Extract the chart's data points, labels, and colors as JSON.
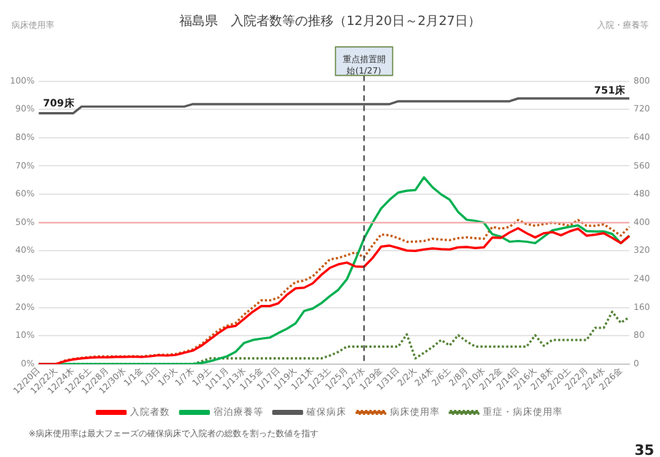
{
  "chart_data": {
    "type": "line",
    "title": "福島県　入院者数等の推移（12月20日～2月27日）",
    "categories": [
      "12/20日",
      null,
      "12/22火",
      null,
      "12/24木",
      null,
      "12/26土",
      null,
      "12/28月",
      null,
      "12/30水",
      null,
      "1/1金",
      null,
      "1/3日",
      null,
      "1/5火",
      null,
      "1/7木",
      null,
      "1/9土",
      null,
      "1/11月",
      null,
      "1/13水",
      null,
      "1/15金",
      null,
      "1/17日",
      null,
      "1/19火",
      null,
      "1/21木",
      null,
      "1/23土",
      null,
      "1/25月",
      null,
      "1/27水",
      null,
      "1/29金",
      null,
      "1/31日",
      null,
      "2/2火",
      null,
      "2/4木",
      null,
      "2/6土",
      null,
      "2/8月",
      null,
      "2/10水",
      null,
      "2/12金",
      null,
      "2/14日",
      null,
      "2/16火",
      null,
      "2/18木",
      null,
      "2/20土",
      null,
      "2/22月",
      null,
      "2/24水",
      null,
      "2/26金",
      null
    ],
    "series": [
      {
        "name": "入院者数",
        "color": "#ff0000",
        "axis": "y2",
        "line_style": "solid",
        "values": [
          0,
          0,
          0,
          8,
          13,
          16,
          18,
          19,
          19,
          20,
          20,
          21,
          20,
          22,
          25,
          24,
          26,
          32,
          38,
          52,
          70,
          88,
          104,
          108,
          128,
          148,
          164,
          164,
          172,
          196,
          214,
          216,
          228,
          252,
          272,
          282,
          287,
          276,
          275,
          300,
          332,
          335,
          328,
          321,
          320,
          324,
          327,
          325,
          324,
          330,
          331,
          328,
          330,
          358,
          357,
          372,
          384,
          370,
          358,
          370,
          373,
          364,
          375,
          383,
          363,
          366,
          370,
          357,
          342,
          362
        ]
      },
      {
        "name": "宿泊療養等",
        "color": "#00b050",
        "axis": "y2",
        "line_style": "solid",
        "values": [
          0,
          0,
          0,
          0,
          0,
          0,
          0,
          0,
          0,
          0,
          0,
          0,
          0,
          0,
          0,
          0,
          0,
          0,
          0,
          3,
          8,
          15,
          22,
          35,
          60,
          68,
          72,
          75,
          88,
          100,
          115,
          150,
          157,
          172,
          192,
          210,
          240,
          295,
          355,
          400,
          440,
          465,
          485,
          490,
          492,
          528,
          500,
          480,
          465,
          430,
          408,
          405,
          400,
          367,
          360,
          346,
          348,
          346,
          342,
          360,
          378,
          383,
          388,
          392,
          376,
          375,
          375,
          368,
          342,
          363
        ]
      },
      {
        "name": "確保病床",
        "color": "#595959",
        "axis": "y2",
        "line_style": "solid",
        "values": [
          709,
          709,
          709,
          709,
          709,
          728,
          728,
          728,
          728,
          728,
          728,
          728,
          728,
          728,
          728,
          728,
          728,
          728,
          735,
          735,
          735,
          735,
          735,
          735,
          735,
          735,
          735,
          735,
          735,
          735,
          735,
          735,
          735,
          735,
          735,
          735,
          735,
          735,
          735,
          735,
          735,
          735,
          743,
          743,
          743,
          743,
          743,
          743,
          743,
          743,
          743,
          743,
          743,
          743,
          743,
          743,
          751,
          751,
          751,
          751,
          751,
          751,
          751,
          751,
          751,
          751,
          751,
          751,
          751,
          751
        ]
      },
      {
        "name": "病床使用率",
        "color": "#c55a11",
        "line_style": "dotted",
        "values": [
          0,
          0,
          0,
          1.2,
          1.8,
          2.2,
          2.5,
          2.7,
          2.7,
          2.7,
          2.7,
          2.8,
          2.7,
          3,
          3.3,
          3.3,
          3.6,
          4.3,
          5.2,
          7,
          9.5,
          12,
          13.5,
          14.5,
          17.5,
          20,
          22.5,
          22.5,
          23.5,
          26.5,
          29,
          29.5,
          31,
          34,
          37,
          37.5,
          38.5,
          39.5,
          37.7,
          42,
          45.8,
          45.5,
          44.5,
          43.2,
          43.3,
          43.5,
          44.3,
          44,
          43.8,
          44.5,
          44.8,
          44.5,
          44.3,
          48.5,
          47.8,
          48.5,
          50.9,
          49.5,
          48.9,
          49.5,
          50,
          49.5,
          48.9,
          50.9,
          48.9,
          48.9,
          49.4,
          47.5,
          45.4,
          48.5
        ]
      },
      {
        "name": "重症・病床使用率",
        "color": "#548235",
        "line_style": "dotted",
        "values": [
          0,
          0,
          0,
          0,
          0,
          0,
          0,
          0,
          0,
          0,
          0,
          0,
          0,
          0,
          0,
          0,
          0,
          0,
          0,
          1,
          2,
          2,
          2,
          2,
          2,
          2,
          2,
          2,
          2,
          2,
          2,
          2,
          2,
          2,
          3,
          4.3,
          6.2,
          6.2,
          6.2,
          6.2,
          6.2,
          6.2,
          6.2,
          10.5,
          2,
          4,
          6,
          8.5,
          6.6,
          10.2,
          8,
          6.2,
          6.2,
          6.2,
          6.2,
          6.2,
          6.2,
          6.2,
          10.2,
          6.5,
          8.5,
          8.5,
          8.5,
          8.5,
          8.5,
          12.8,
          12.8,
          18.5,
          14.6,
          16.6
        ]
      }
    ],
    "ylim": [
      0,
      100
    ],
    "yticks": [
      {
        "value": 0,
        "label": "0%"
      },
      {
        "value": 10,
        "label": "10%"
      },
      {
        "value": 20,
        "label": "20%"
      },
      {
        "value": 30,
        "label": "30%"
      },
      {
        "value": 40,
        "label": "40%"
      },
      {
        "value": 50,
        "label": "50%"
      },
      {
        "value": 60,
        "label": "60%"
      },
      {
        "value": 70,
        "label": "70%"
      },
      {
        "value": 80,
        "label": "80%"
      },
      {
        "value": 90,
        "label": "90%"
      },
      {
        "value": 100,
        "label": "100%"
      }
    ],
    "y2lim": [
      0,
      800
    ],
    "y2ticks": [
      0,
      80,
      160,
      240,
      320,
      400,
      480,
      560,
      640,
      720,
      800
    ],
    "ref_lines": [
      {
        "axis": "y",
        "value": 50,
        "color": "#f4a6a6",
        "line_style": "solid"
      },
      {
        "axis": "x",
        "value": "1/27水",
        "label": "重点措置開始(1/27)",
        "color": "#404040",
        "line_style": "dashed"
      }
    ],
    "annotations": [
      "病床使用率",
      "入院・療養等",
      "709床",
      "751床",
      "※病床使用率は最大フェーズの確保病床で入院者の総数を割った数値を指す",
      "35"
    ],
    "grid": "y",
    "legend": "bottom",
    "marker": "none"
  }
}
